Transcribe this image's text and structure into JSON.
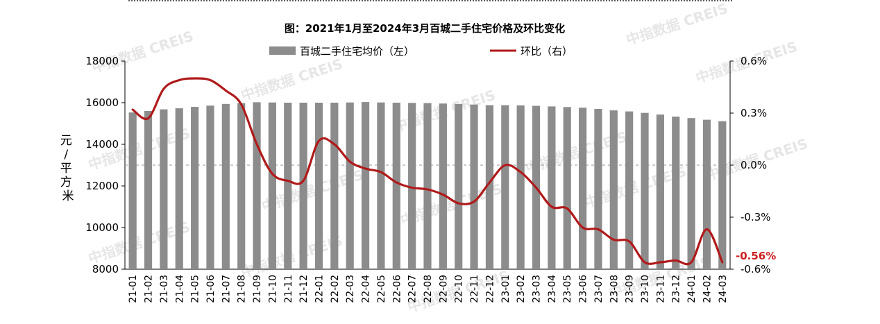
{
  "chart_data": {
    "type": "bar",
    "title": "图：2021年1月至2024年3月百城二手住宅价格及环比变化",
    "ylabel": "元/平方米",
    "ylim": [
      8000,
      18000
    ],
    "yticks": [
      "8000",
      "10000",
      "12000",
      "14000",
      "16000",
      "18000"
    ],
    "y2lim": [
      -0.6,
      0.6
    ],
    "y2ticks": [
      "-0.6%",
      "-0.3%",
      "0.0%",
      "0.3%",
      "0.6%"
    ],
    "categories": [
      "21-01",
      "21-02",
      "21-03",
      "21-04",
      "21-05",
      "21-06",
      "21-07",
      "21-08",
      "21-09",
      "21-10",
      "21-11",
      "21-12",
      "22-01",
      "22-02",
      "22-03",
      "22-04",
      "22-05",
      "22-06",
      "22-07",
      "22-08",
      "22-09",
      "22-10",
      "22-11",
      "22-12",
      "23-01",
      "23-02",
      "23-03",
      "23-04",
      "23-05",
      "23-06",
      "23-07",
      "23-08",
      "23-09",
      "23-10",
      "23-11",
      "23-12",
      "24-01",
      "24-02",
      "24-03"
    ],
    "series": [
      {
        "name": "百城二手住宅均价（左）",
        "type": "bar",
        "axis": "left",
        "color": "#8c8c8c",
        "values": [
          15530,
          15600,
          15680,
          15730,
          15800,
          15860,
          15940,
          15980,
          16020,
          16010,
          16000,
          16000,
          16000,
          16000,
          16010,
          16030,
          16010,
          16000,
          15990,
          15980,
          15960,
          15940,
          15910,
          15880,
          15880,
          15870,
          15850,
          15820,
          15790,
          15760,
          15700,
          15630,
          15580,
          15510,
          15430,
          15330,
          15260,
          15180,
          15110
        ]
      },
      {
        "name": "环比（右）",
        "type": "line",
        "axis": "right",
        "color": "#b01a1a",
        "values": [
          0.32,
          0.27,
          0.44,
          0.49,
          0.5,
          0.49,
          0.43,
          0.35,
          0.12,
          -0.05,
          -0.09,
          -0.09,
          0.14,
          0.12,
          0.02,
          -0.02,
          -0.04,
          -0.1,
          -0.13,
          -0.14,
          -0.17,
          -0.22,
          -0.21,
          -0.1,
          0.0,
          -0.04,
          -0.13,
          -0.24,
          -0.25,
          -0.36,
          -0.37,
          -0.43,
          -0.44,
          -0.56,
          -0.56,
          -0.55,
          -0.56,
          -0.37,
          -0.56
        ]
      }
    ],
    "annotation": "-0.56%",
    "annotation_color": "#cc1f1f",
    "watermark": "中指数据 CREIS",
    "zero_line": "dashed"
  }
}
